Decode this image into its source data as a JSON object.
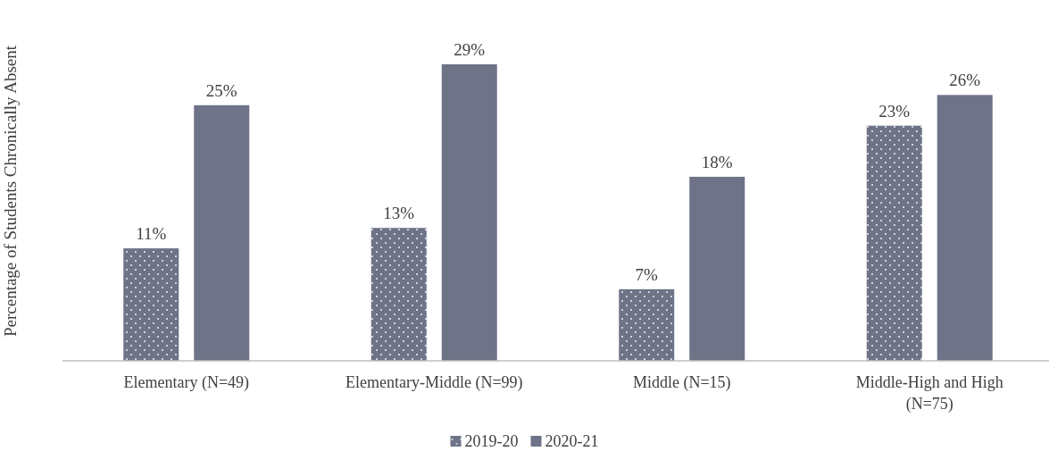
{
  "chart_data": {
    "type": "bar",
    "ylabel": "Percentage of Students Chronically Absent",
    "categories": [
      "Elementary (N=49)",
      "Elementary-Middle (N=99)",
      "Middle (N=15)",
      "Middle-High and High (N=75)"
    ],
    "series": [
      {
        "name": "2019-20",
        "color": "#6e7387",
        "values": [
          11,
          13,
          7,
          23
        ],
        "value_labels": [
          "11%",
          "13%",
          "7%",
          "23%"
        ]
      },
      {
        "name": "2020-21",
        "color": "#6e7387",
        "values": [
          25,
          29,
          18,
          26
        ],
        "value_labels": [
          "25%",
          "29%",
          "18%",
          "26%"
        ]
      }
    ],
    "legend": "bottom",
    "grid": false
  }
}
